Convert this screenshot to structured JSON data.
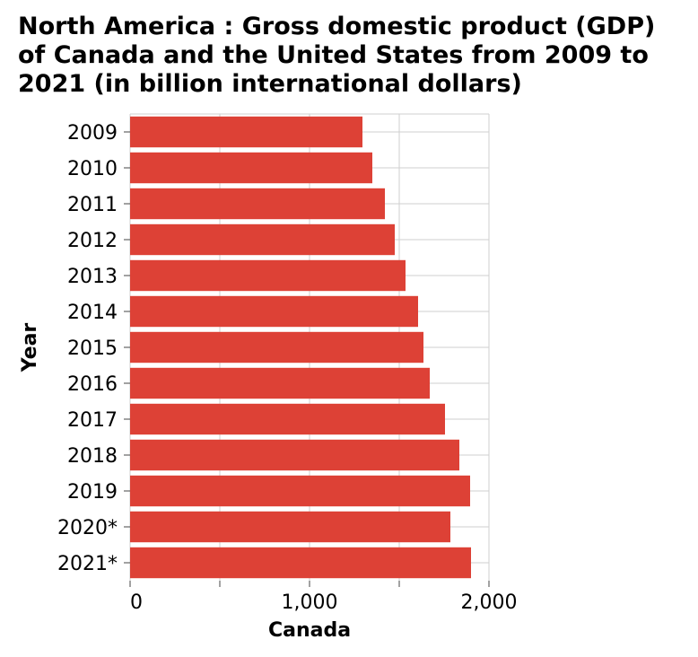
{
  "chart_data": {
    "type": "bar",
    "orientation": "horizontal",
    "title": "North America : Gross domestic product (GDP) of Canada and the United States from 2009 to 2021 (in billion international dollars)",
    "xlabel": "Canada",
    "ylabel": "Year",
    "categories": [
      "2009",
      "2010",
      "2011",
      "2012",
      "2013",
      "2014",
      "2015",
      "2016",
      "2017",
      "2018",
      "2019",
      "2020*",
      "2021*"
    ],
    "series": [
      {
        "values": [
          1295,
          1350,
          1420,
          1475,
          1535,
          1605,
          1635,
          1670,
          1755,
          1835,
          1895,
          1785,
          1900
        ]
      }
    ],
    "xlim": [
      0,
      2000
    ],
    "x_ticks": [
      0,
      500,
      1000,
      1500,
      2000
    ],
    "x_tick_labels": [
      "0",
      "",
      "1,000",
      "",
      "2,000"
    ],
    "grid": true,
    "bar_color": "#dd4136"
  }
}
